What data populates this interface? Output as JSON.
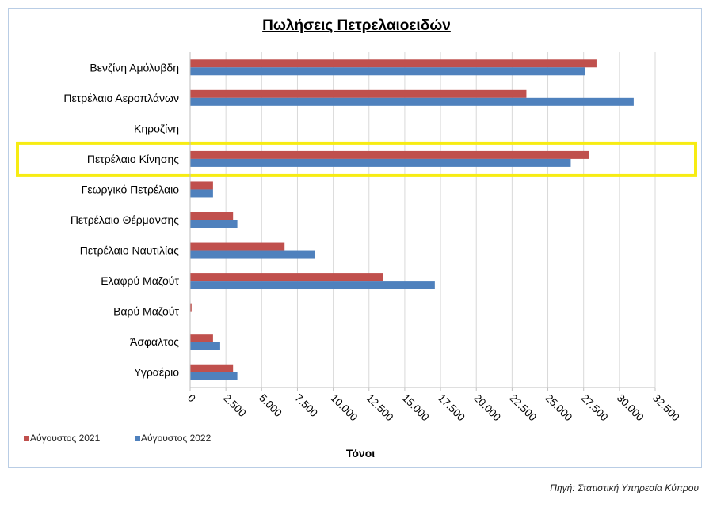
{
  "source": "Πηγή: Στατιστική Υπηρεσία Κύπρου",
  "chart_data": {
    "type": "bar",
    "orientation": "horizontal",
    "title": "Πωλήσεις Πετρελαιοειδών",
    "xlabel": "Τόνοι",
    "ylabel": "",
    "xlim": [
      0,
      32500
    ],
    "x_ticks": [
      0,
      2500,
      5000,
      7500,
      10000,
      12500,
      15000,
      17500,
      20000,
      22500,
      25000,
      27500,
      30000,
      32500
    ],
    "x_tick_labels": [
      "0",
      "2.500",
      "5.000",
      "7.500",
      "10.000",
      "12.500",
      "15.000",
      "17.500",
      "20.000",
      "22.500",
      "25.000",
      "27.500",
      "30.000",
      "32.500"
    ],
    "grid": true,
    "legend_position": "bottom-left",
    "categories": [
      "Βενζίνη Αμόλυβδη",
      "Πετρέλαιο Αεροπλάνων",
      "Κηροζίνη",
      "Πετρέλαιο Κίνησης",
      "Γεωργικό Πετρέλαιο",
      "Πετρέλαιο Θέρμανσης",
      "Πετρέλαιο Ναυτιλίας",
      "Ελαφρύ Μαζούτ",
      "Βαρύ Μαζούτ",
      "Άσφαλτος",
      "Υγραέριο"
    ],
    "series": [
      {
        "name": "Αύγουστος 2021",
        "color": "#c0504d",
        "values": [
          28400,
          23500,
          0,
          27900,
          1600,
          3000,
          6600,
          13500,
          100,
          1600,
          3000
        ]
      },
      {
        "name": "Αύγουστος 2022",
        "color": "#4f81bd",
        "values": [
          27600,
          31000,
          0,
          26600,
          1600,
          3300,
          8700,
          17100,
          0,
          2100,
          3300
        ]
      }
    ],
    "highlight": {
      "category": "Πετρέλαιο Κίνησης",
      "color": "#f7ec13"
    }
  }
}
